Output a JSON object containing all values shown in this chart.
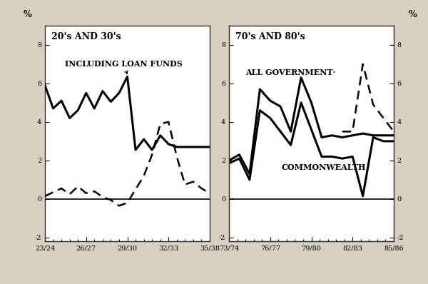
{
  "left_title": "20's AND 30's",
  "right_title": "70's AND 80's",
  "ylabel_left": "%",
  "ylabel_right": "%",
  "ylim": [
    -2.2,
    9.0
  ],
  "yticks": [
    -2,
    0,
    2,
    4,
    6,
    8
  ],
  "bg_outer": "#d8d0c0",
  "bg_panel": "#ffffff",
  "left_xtick_labels": [
    "23/24",
    "26/27",
    "29/30",
    "32/33",
    "35/38"
  ],
  "right_xtick_labels": [
    "73/74",
    "76/77",
    "79/80",
    "82/83",
    "85/86"
  ],
  "left_solid_x": [
    0,
    1,
    2,
    3,
    4,
    5,
    6,
    7,
    8,
    9,
    10,
    11,
    12,
    13,
    14,
    15,
    16,
    17,
    18,
    19,
    20
  ],
  "left_solid_y": [
    5.9,
    4.7,
    5.1,
    4.2,
    4.6,
    5.5,
    4.7,
    5.6,
    5.05,
    5.5,
    6.35,
    2.55,
    3.1,
    2.55,
    3.3,
    2.85,
    2.7,
    2.7,
    2.7,
    2.7,
    2.7
  ],
  "left_dashed_x": [
    0,
    1,
    2,
    3,
    4,
    5,
    6,
    7,
    8,
    9,
    10,
    11,
    12,
    13,
    14,
    15,
    16,
    17,
    18,
    19,
    20
  ],
  "left_dashed_y": [
    0.15,
    0.35,
    0.55,
    0.25,
    0.65,
    0.3,
    0.4,
    0.1,
    -0.05,
    -0.35,
    -0.2,
    0.5,
    1.2,
    2.3,
    3.9,
    4.0,
    2.2,
    0.75,
    0.9,
    0.55,
    0.3
  ],
  "right_upper_x": [
    0,
    1,
    2,
    3,
    4,
    5,
    6,
    7,
    8,
    9,
    10,
    11,
    12,
    13,
    14,
    15,
    16
  ],
  "right_upper_y": [
    2.0,
    2.3,
    1.3,
    5.7,
    5.1,
    4.8,
    3.5,
    6.3,
    5.0,
    3.2,
    3.3,
    3.2,
    3.3,
    3.4,
    3.3,
    3.3,
    3.3
  ],
  "right_lower_x": [
    0,
    1,
    2,
    3,
    4,
    5,
    6,
    7,
    8,
    9,
    10,
    11,
    12,
    13,
    14,
    15,
    16
  ],
  "right_lower_y": [
    1.85,
    2.1,
    1.0,
    4.6,
    4.2,
    3.5,
    2.8,
    5.0,
    3.6,
    2.2,
    2.2,
    2.1,
    2.2,
    0.15,
    3.2,
    3.0,
    3.0
  ],
  "right_dashed_x": [
    11,
    12,
    13,
    14,
    15,
    16
  ],
  "right_dashed_y": [
    3.5,
    3.5,
    7.0,
    4.9,
    4.2,
    3.5
  ],
  "left_label_solid": "INCLUDING LOAN FUNDS",
  "right_label_upper": "ALL GOVERNMENT·",
  "right_label_lower": "COMMONWEALTH",
  "font_family": "DejaVu Serif",
  "tick_fontsize": 7.0,
  "label_fontsize": 8.0,
  "title_fontsize": 9.0,
  "pct_fontsize": 9.0
}
